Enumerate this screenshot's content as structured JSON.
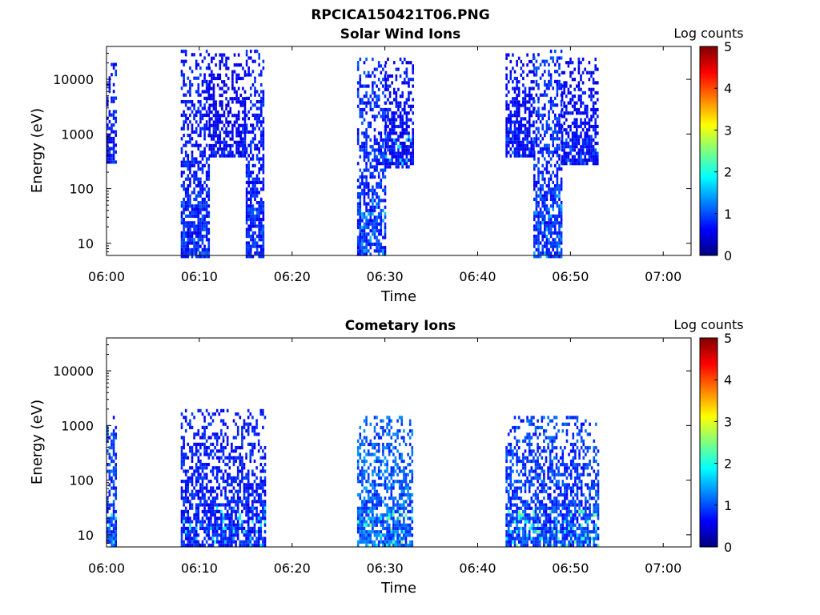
{
  "figure": {
    "title": "RPCICA150421T06.PNG"
  },
  "colormap": {
    "name": "jet",
    "stops": [
      "#00007f",
      "#0000ff",
      "#007fff",
      "#00ffff",
      "#7fff7f",
      "#ffff00",
      "#ff7f00",
      "#ff0000",
      "#7f0000"
    ]
  },
  "chart_data": [
    {
      "type": "heatmap",
      "title": "Solar Wind Ions",
      "xlabel": "Time",
      "ylabel": "Energy (eV)",
      "y_scale": "log",
      "xlim": [
        "06:00",
        "07:03"
      ],
      "ylim": [
        6,
        40000
      ],
      "x_ticks": [
        "06:00",
        "06:10",
        "06:20",
        "06:30",
        "06:40",
        "06:50",
        "07:00"
      ],
      "y_ticks": [
        10,
        100,
        1000,
        10000
      ],
      "y_tick_labels": [
        "10",
        "100",
        "1000",
        "10000"
      ],
      "colorbar": {
        "label": "Log counts",
        "range": [
          0,
          5
        ],
        "ticks": [
          "0",
          "1",
          "2",
          "3",
          "4",
          "5"
        ]
      },
      "data_blocks": [
        {
          "t_start": "06:00",
          "t_end": "06:01",
          "e_min": 300,
          "e_max": 20000,
          "typical": 0.8,
          "peak": 1.5
        },
        {
          "t_start": "06:08",
          "t_end": "06:11",
          "e_min": 6,
          "e_max": 35000,
          "typical": 0.8,
          "peak": 1.2
        },
        {
          "t_start": "06:11",
          "t_end": "06:15",
          "e_min": 400,
          "e_max": 30000,
          "typical": 0.6,
          "peak": 1.0
        },
        {
          "t_start": "06:15",
          "t_end": "06:17",
          "e_min": 6,
          "e_max": 35000,
          "typical": 0.8,
          "peak": 1.2
        },
        {
          "t_start": "06:27",
          "t_end": "06:30",
          "e_min": 6,
          "e_max": 25000,
          "typical": 0.9,
          "peak": 1.6
        },
        {
          "t_start": "06:30",
          "t_end": "06:33",
          "e_min": 250,
          "e_max": 25000,
          "typical": 0.7,
          "peak": 1.8
        },
        {
          "t_start": "06:43",
          "t_end": "06:46",
          "e_min": 400,
          "e_max": 30000,
          "typical": 0.7,
          "peak": 1.3
        },
        {
          "t_start": "06:46",
          "t_end": "06:49",
          "e_min": 6,
          "e_max": 35000,
          "typical": 0.9,
          "peak": 1.6
        },
        {
          "t_start": "06:49",
          "t_end": "06:53",
          "e_min": 300,
          "e_max": 25000,
          "typical": 0.7,
          "peak": 1.2
        }
      ]
    },
    {
      "type": "heatmap",
      "title": "Cometary Ions",
      "xlabel": "Time",
      "ylabel": "Energy (eV)",
      "y_scale": "log",
      "xlim": [
        "06:00",
        "07:03"
      ],
      "ylim": [
        6,
        40000
      ],
      "x_ticks": [
        "06:00",
        "06:10",
        "06:20",
        "06:30",
        "06:40",
        "06:50",
        "07:00"
      ],
      "y_ticks": [
        10,
        100,
        1000,
        10000
      ],
      "y_tick_labels": [
        "10",
        "100",
        "1000",
        "10000"
      ],
      "colorbar": {
        "label": "Log counts",
        "range": [
          0,
          5
        ],
        "ticks": [
          "0",
          "1",
          "2",
          "3",
          "4",
          "5"
        ]
      },
      "data_blocks": [
        {
          "t_start": "06:00",
          "t_end": "06:01",
          "e_min": 6,
          "e_max": 1500,
          "typical": 1.0,
          "peak": 2.0
        },
        {
          "t_start": "06:08",
          "t_end": "06:17",
          "e_min": 6,
          "e_max": 2000,
          "typical": 0.8,
          "peak": 2.2
        },
        {
          "t_start": "06:27",
          "t_end": "06:33",
          "e_min": 6,
          "e_max": 1500,
          "typical": 1.2,
          "peak": 2.7
        },
        {
          "t_start": "06:43",
          "t_end": "06:53",
          "e_min": 6,
          "e_max": 1500,
          "typical": 1.0,
          "peak": 2.6
        }
      ]
    }
  ]
}
